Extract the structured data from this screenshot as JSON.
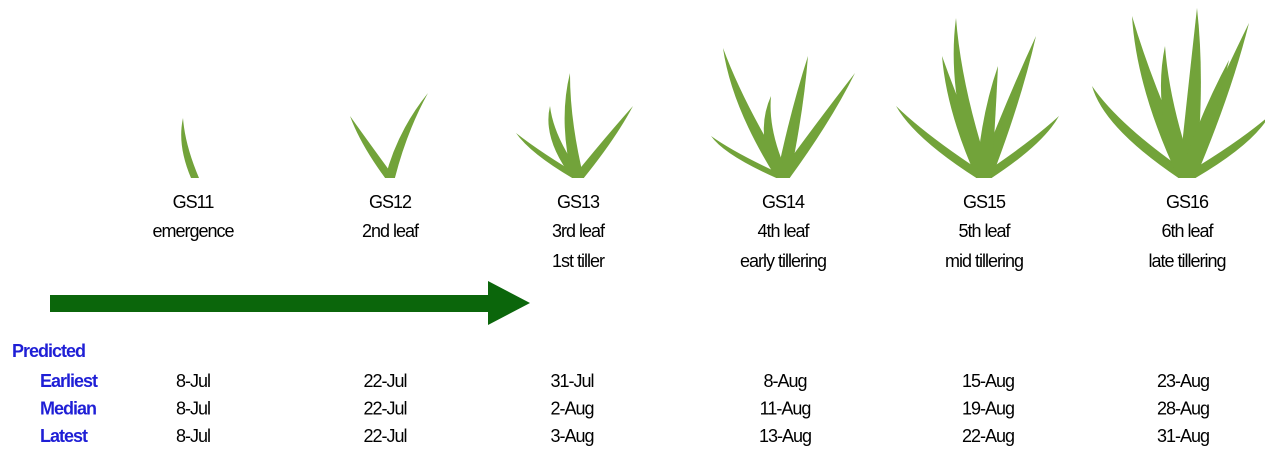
{
  "stages": [
    {
      "code": "GS11",
      "description": [
        "emergence"
      ]
    },
    {
      "code": "GS12",
      "description": [
        "2nd leaf"
      ]
    },
    {
      "code": "GS13",
      "description": [
        "3rd leaf",
        "1st tiller"
      ]
    },
    {
      "code": "GS14",
      "description": [
        "4th leaf",
        "early tillering"
      ]
    },
    {
      "code": "GS15",
      "description": [
        "5th leaf",
        "mid tillering"
      ]
    },
    {
      "code": "GS16",
      "description": [
        "6th leaf",
        "late tillering"
      ]
    }
  ],
  "predicted": {
    "title": "Predicted",
    "rows": [
      {
        "label": "Earliest",
        "dates": [
          "8-Jul",
          "22-Jul",
          "31-Jul",
          "8-Aug",
          "15-Aug",
          "23-Aug"
        ]
      },
      {
        "label": "Median",
        "dates": [
          "8-Jul",
          "22-Jul",
          "2-Aug",
          "11-Aug",
          "19-Aug",
          "28-Aug"
        ]
      },
      {
        "label": "Latest",
        "dates": [
          "8-Jul",
          "22-Jul",
          "3-Aug",
          "13-Aug",
          "22-Aug",
          "31-Aug"
        ]
      }
    ]
  }
}
